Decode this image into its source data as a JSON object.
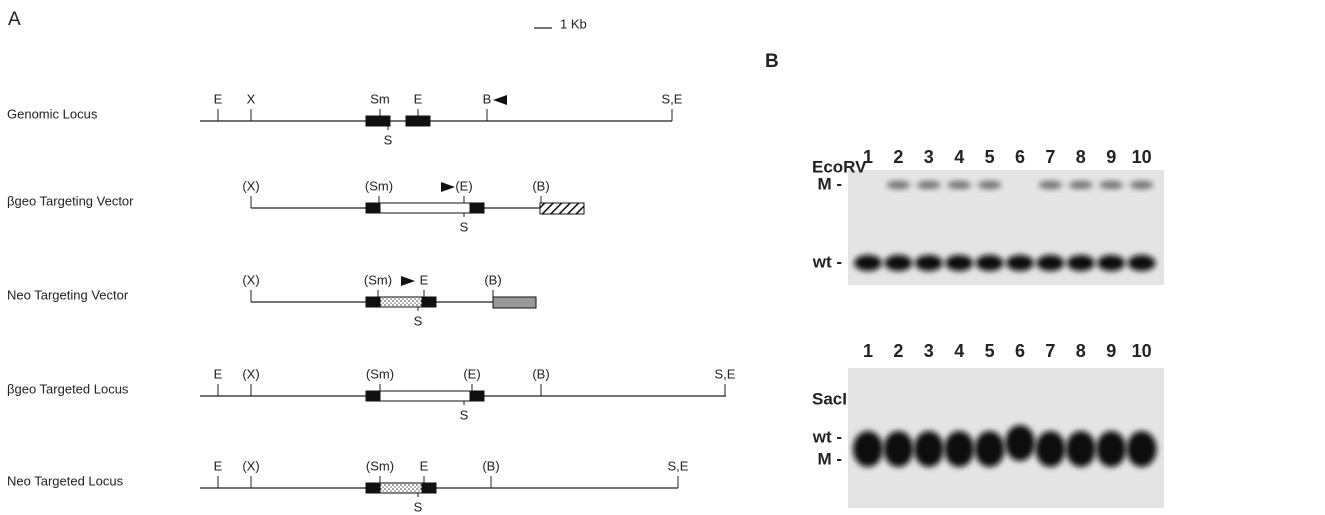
{
  "panel_a": {
    "label": "A",
    "scale": "1 Kb",
    "rows": [
      {
        "name": "Genomic Locus",
        "sites": [
          "E",
          "X",
          "Sm",
          "E",
          "B",
          "S,E"
        ],
        "below": "S"
      },
      {
        "name": "βgeo Targeting Vector",
        "sites": [
          "(X)",
          "(Sm)",
          "(E)",
          "(B)"
        ],
        "below": "S"
      },
      {
        "name": "Neo Targeting Vector",
        "sites": [
          "(X)",
          "(Sm)",
          "E",
          "(B)"
        ],
        "below": "S"
      },
      {
        "name": "βgeo Targeted Locus",
        "sites": [
          "E",
          "(X)",
          "(Sm)",
          "(E)",
          "(B)",
          "S,E"
        ],
        "below": "S"
      },
      {
        "name": "Neo Targeted Locus",
        "sites": [
          "E",
          "(X)",
          "(Sm)",
          "E",
          "(B)",
          "S,E"
        ],
        "below": "S"
      }
    ]
  },
  "panel_b": {
    "label": "B",
    "lanes": [
      1,
      2,
      3,
      4,
      5,
      6,
      7,
      8,
      9,
      10
    ],
    "blots": [
      {
        "enzyme": "EcoRV",
        "bands": [
          "M -",
          "wt -"
        ]
      },
      {
        "enzyme": "SacI",
        "bands": [
          "wt -",
          "M -"
        ]
      }
    ]
  }
}
